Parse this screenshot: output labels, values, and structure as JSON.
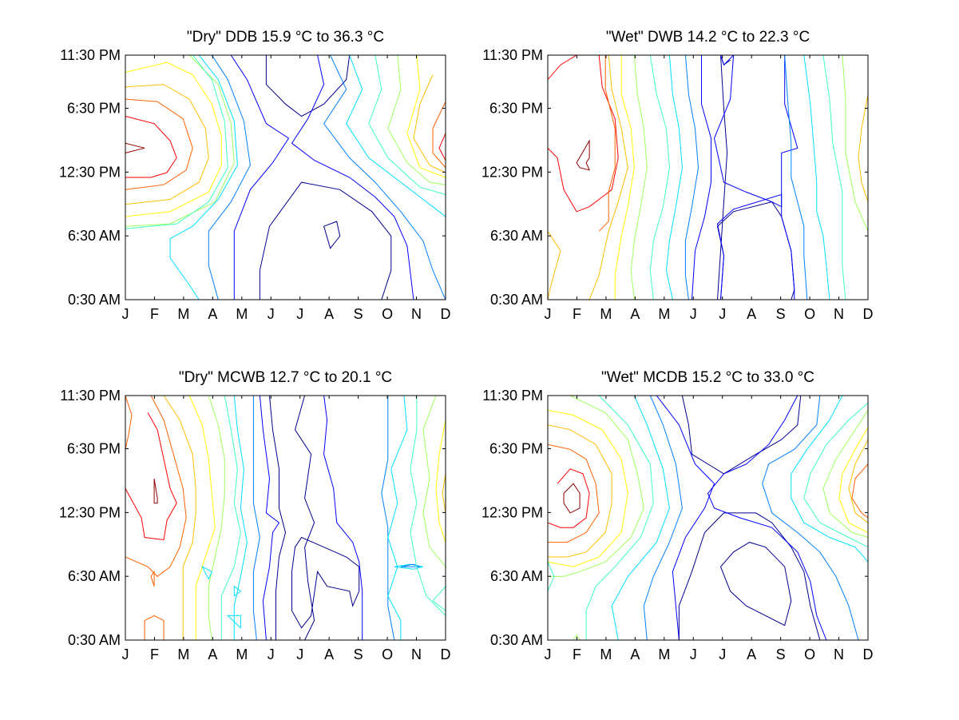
{
  "chart_data": [
    {
      "type": "contour",
      "title": "\"Dry\" DDB  15.9 °C to  36.3 °C",
      "x_ticklabels": [
        "J",
        "F",
        "M",
        "A",
        "M",
        "J",
        "J",
        "A",
        "S",
        "O",
        "N",
        "D"
      ],
      "y_ticklabels": [
        "0:30 AM",
        "6:30 AM",
        "12:30 PM",
        "6:30 PM",
        "11:30 PM"
      ],
      "range": [
        15.9,
        36.3
      ],
      "unit": "°C",
      "colormap": "jet",
      "extremes": {
        "max_near": "Jan/Dec ~2:30 PM",
        "min_near": "Jun-Aug ~6 AM"
      }
    },
    {
      "type": "contour",
      "title": "\"Wet\" DWB  14.2 °C to  22.3 °C",
      "x_ticklabels": [
        "J",
        "F",
        "M",
        "A",
        "M",
        "J",
        "J",
        "A",
        "S",
        "O",
        "N",
        "D"
      ],
      "y_ticklabels": [
        "0:30 AM",
        "6:30 AM",
        "12:30 PM",
        "6:30 PM",
        "11:30 PM"
      ],
      "range": [
        14.2,
        22.3
      ],
      "unit": "°C",
      "colormap": "jet",
      "extremes": {
        "max_near": "Feb ~2 PM",
        "min_near": "Jul-Sep early morning"
      }
    },
    {
      "type": "contour",
      "title": "\"Dry\" MCWB  12.7 °C to  20.1 °C",
      "x_ticklabels": [
        "J",
        "F",
        "M",
        "A",
        "M",
        "J",
        "J",
        "A",
        "S",
        "O",
        "N",
        "D"
      ],
      "y_ticklabels": [
        "0:30 AM",
        "6:30 AM",
        "12:30 PM",
        "6:30 PM",
        "11:30 PM"
      ],
      "range": [
        12.7,
        20.1
      ],
      "unit": "°C",
      "colormap": "jet",
      "extremes": {
        "max_near": "Feb ~1:30 PM",
        "min_near": "Jul-Aug morning"
      }
    },
    {
      "type": "contour",
      "title": "\"Wet\" MCDB  15.2 °C to  33.0 °C",
      "x_ticklabels": [
        "J",
        "F",
        "M",
        "A",
        "M",
        "J",
        "J",
        "A",
        "S",
        "O",
        "N",
        "D"
      ],
      "y_ticklabels": [
        "0:30 AM",
        "6:30 AM",
        "12:30 PM",
        "6:30 PM",
        "11:30 PM"
      ],
      "range": [
        15.2,
        33.0
      ],
      "unit": "°C",
      "colormap": "jet",
      "extremes": {
        "max_near": "Feb ~1:30 PM",
        "min_near": "Aug ~4 AM"
      }
    }
  ],
  "colors": {
    "c1": "#00008f",
    "c2": "#0000ff",
    "c3": "#0080ff",
    "c4": "#00dfff",
    "c5": "#40ffbf",
    "c6": "#9fff60",
    "c7": "#ffff00",
    "c8": "#ffbf00",
    "c9": "#ff6000",
    "c10": "#ff0000",
    "c11": "#8f0000"
  }
}
